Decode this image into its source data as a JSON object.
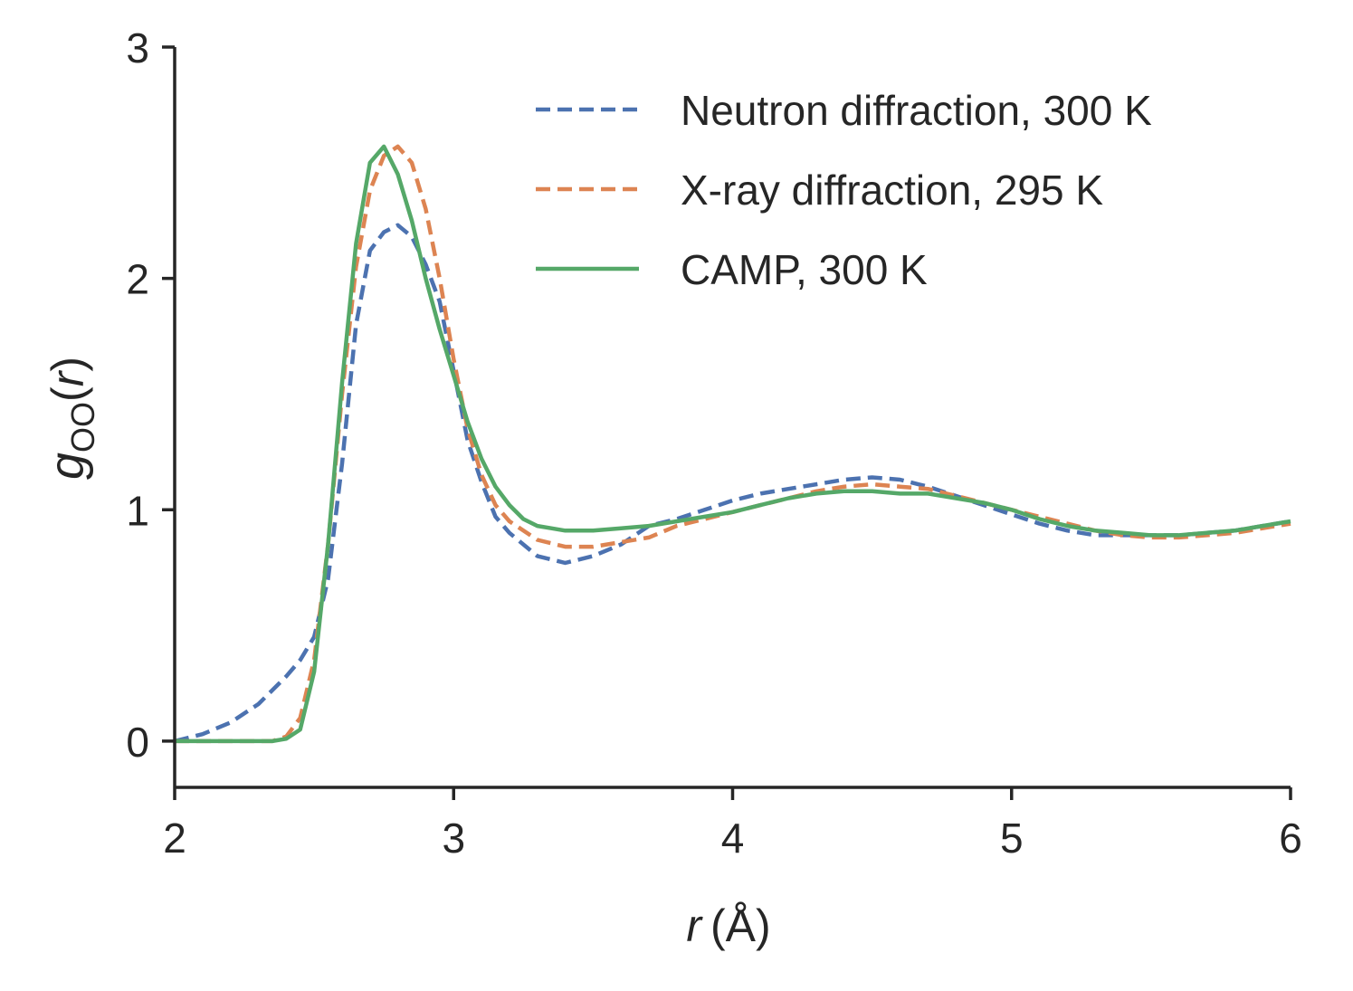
{
  "chart_data": {
    "type": "line",
    "title": "",
    "xlabel": {
      "var": "r",
      "unit": "(Å)"
    },
    "ylabel": {
      "var": "g",
      "sub": "OO",
      "arg": "r"
    },
    "xlim": [
      2,
      6
    ],
    "ylim": [
      -0.2,
      3
    ],
    "xticks": [
      2,
      3,
      4,
      5,
      6
    ],
    "xtick_labels": [
      "2",
      "3",
      "4",
      "5",
      "6"
    ],
    "yticks": [
      0,
      1,
      2,
      3
    ],
    "ytick_labels": [
      "0",
      "1",
      "2",
      "3"
    ],
    "grid": false,
    "legend_position": "top-right",
    "series": [
      {
        "name": "Neutron diffraction, 300 K",
        "color": "#4c72b0",
        "style": "dashed",
        "x": [
          2.0,
          2.1,
          2.2,
          2.3,
          2.4,
          2.45,
          2.5,
          2.55,
          2.6,
          2.65,
          2.7,
          2.75,
          2.8,
          2.85,
          2.9,
          2.95,
          3.0,
          3.05,
          3.1,
          3.15,
          3.2,
          3.3,
          3.4,
          3.5,
          3.6,
          3.7,
          3.8,
          3.9,
          4.0,
          4.1,
          4.2,
          4.3,
          4.4,
          4.5,
          4.6,
          4.7,
          4.8,
          4.9,
          5.0,
          5.1,
          5.2,
          5.3,
          5.4,
          5.5,
          5.6,
          5.7,
          5.8,
          5.9,
          6.0
        ],
        "y": [
          0.0,
          0.03,
          0.08,
          0.16,
          0.28,
          0.35,
          0.45,
          0.7,
          1.2,
          1.8,
          2.12,
          2.2,
          2.23,
          2.18,
          2.06,
          1.9,
          1.6,
          1.3,
          1.12,
          0.97,
          0.9,
          0.8,
          0.77,
          0.8,
          0.85,
          0.93,
          0.96,
          1.0,
          1.04,
          1.07,
          1.09,
          1.11,
          1.13,
          1.14,
          1.13,
          1.1,
          1.06,
          1.02,
          0.98,
          0.94,
          0.91,
          0.89,
          0.89,
          0.89,
          0.89,
          0.9,
          0.91,
          0.93,
          0.95
        ]
      },
      {
        "name": "X-ray diffraction, 295 K",
        "color": "#dd8452",
        "style": "dashed",
        "x": [
          2.0,
          2.1,
          2.2,
          2.3,
          2.35,
          2.4,
          2.45,
          2.5,
          2.55,
          2.6,
          2.65,
          2.7,
          2.75,
          2.8,
          2.85,
          2.9,
          2.95,
          3.0,
          3.05,
          3.1,
          3.15,
          3.2,
          3.3,
          3.4,
          3.5,
          3.6,
          3.7,
          3.8,
          3.9,
          4.0,
          4.1,
          4.2,
          4.3,
          4.4,
          4.5,
          4.6,
          4.7,
          4.8,
          4.9,
          5.0,
          5.1,
          5.2,
          5.3,
          5.4,
          5.5,
          5.6,
          5.7,
          5.8,
          5.9,
          6.0
        ],
        "y": [
          0.0,
          0.0,
          0.0,
          0.0,
          0.0,
          0.02,
          0.1,
          0.35,
          0.85,
          1.5,
          2.05,
          2.38,
          2.53,
          2.57,
          2.5,
          2.3,
          2.0,
          1.65,
          1.35,
          1.15,
          1.02,
          0.95,
          0.87,
          0.84,
          0.84,
          0.86,
          0.88,
          0.93,
          0.96,
          0.99,
          1.02,
          1.05,
          1.08,
          1.1,
          1.11,
          1.1,
          1.09,
          1.06,
          1.03,
          1.0,
          0.97,
          0.94,
          0.91,
          0.89,
          0.88,
          0.88,
          0.89,
          0.9,
          0.92,
          0.94
        ]
      },
      {
        "name": "CAMP, 300 K",
        "color": "#55a868",
        "style": "solid",
        "x": [
          2.0,
          2.1,
          2.2,
          2.3,
          2.35,
          2.4,
          2.45,
          2.5,
          2.55,
          2.6,
          2.65,
          2.7,
          2.75,
          2.8,
          2.85,
          2.9,
          2.95,
          3.0,
          3.05,
          3.1,
          3.15,
          3.2,
          3.25,
          3.3,
          3.35,
          3.4,
          3.5,
          3.6,
          3.7,
          3.8,
          3.9,
          4.0,
          4.1,
          4.2,
          4.3,
          4.4,
          4.5,
          4.6,
          4.7,
          4.8,
          4.9,
          5.0,
          5.1,
          5.2,
          5.3,
          5.4,
          5.5,
          5.6,
          5.7,
          5.8,
          5.9,
          6.0
        ],
        "y": [
          0.0,
          0.0,
          0.0,
          0.0,
          0.0,
          0.01,
          0.05,
          0.3,
          0.85,
          1.55,
          2.15,
          2.5,
          2.57,
          2.45,
          2.25,
          2.0,
          1.78,
          1.58,
          1.38,
          1.22,
          1.1,
          1.02,
          0.96,
          0.93,
          0.92,
          0.91,
          0.91,
          0.92,
          0.93,
          0.95,
          0.97,
          0.99,
          1.02,
          1.05,
          1.07,
          1.08,
          1.08,
          1.07,
          1.07,
          1.05,
          1.03,
          1.0,
          0.96,
          0.93,
          0.91,
          0.9,
          0.89,
          0.89,
          0.9,
          0.91,
          0.93,
          0.95
        ]
      }
    ]
  }
}
